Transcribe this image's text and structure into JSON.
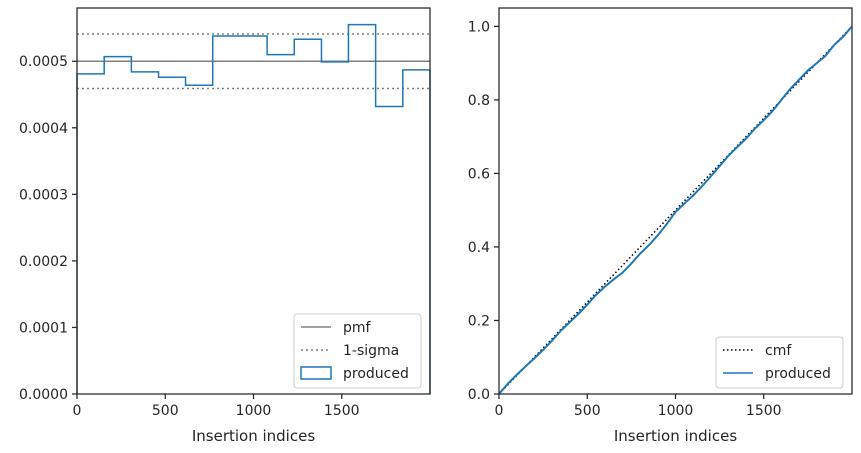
{
  "chart_data": [
    {
      "type": "step",
      "xlabel": "Insertion indices",
      "ylabel": "",
      "xlim": [
        0,
        2000
      ],
      "ylim": [
        0,
        0.00058
      ],
      "xticks": [
        0,
        500,
        1000,
        1500
      ],
      "yticks": [
        0,
        0.0001,
        0.0002,
        0.0003,
        0.0004,
        0.0005
      ],
      "ytick_labels": [
        "0.0000",
        "0.0001",
        "0.0002",
        "0.0003",
        "0.0004",
        "0.0005"
      ],
      "grid": false,
      "legend": "lower-right",
      "series": [
        {
          "name": "pmf",
          "kind": "hline",
          "style": "solid",
          "color": "#808080",
          "y": 0.0005
        },
        {
          "name": "1-sigma",
          "kind": "hlines",
          "style": "dotted",
          "color": "#808080",
          "y": [
            0.000541,
            0.000459
          ]
        },
        {
          "name": "produced",
          "kind": "histogram-step",
          "color": "#1f77b4",
          "bin_edges": [
            0,
            154,
            308,
            462,
            615,
            769,
            923,
            1077,
            1231,
            1385,
            1538,
            1692,
            1846,
            2000
          ],
          "values": [
            0.000481,
            0.000507,
            0.000484,
            0.000476,
            0.000464,
            0.000538,
            0.000538,
            0.00051,
            0.000533,
            0.000499,
            0.000555,
            0.000432,
            0.000487
          ]
        }
      ]
    },
    {
      "type": "line",
      "xlabel": "Insertion indices",
      "ylabel": "",
      "xlim": [
        0,
        2000
      ],
      "ylim": [
        0,
        1.05
      ],
      "xticks": [
        0,
        500,
        1000,
        1500
      ],
      "yticks": [
        0,
        0.2,
        0.4,
        0.6,
        0.8,
        1.0
      ],
      "ytick_labels": [
        "0.0",
        "0.2",
        "0.4",
        "0.6",
        "0.8",
        "1.0"
      ],
      "grid": false,
      "legend": "lower-right",
      "series": [
        {
          "name": "cmf",
          "kind": "line",
          "style": "dotted",
          "color": "#000000",
          "x": [
            0,
            2000
          ],
          "y": [
            0,
            1.0
          ]
        },
        {
          "name": "produced",
          "kind": "line",
          "color": "#1f77b4",
          "x": [
            0,
            50,
            100,
            150,
            200,
            250,
            300,
            350,
            400,
            450,
            500,
            550,
            600,
            650,
            700,
            750,
            800,
            850,
            900,
            950,
            1000,
            1050,
            1100,
            1150,
            1200,
            1250,
            1300,
            1350,
            1400,
            1450,
            1500,
            1550,
            1600,
            1650,
            1700,
            1750,
            1800,
            1850,
            1900,
            1950,
            2000
          ],
          "y": [
            0,
            0.028,
            0.052,
            0.075,
            0.097,
            0.12,
            0.145,
            0.172,
            0.195,
            0.218,
            0.243,
            0.27,
            0.292,
            0.312,
            0.33,
            0.355,
            0.382,
            0.405,
            0.432,
            0.462,
            0.495,
            0.518,
            0.54,
            0.565,
            0.592,
            0.62,
            0.648,
            0.672,
            0.695,
            0.722,
            0.745,
            0.77,
            0.8,
            0.83,
            0.855,
            0.88,
            0.9,
            0.92,
            0.95,
            0.972,
            1.0
          ]
        }
      ]
    }
  ]
}
